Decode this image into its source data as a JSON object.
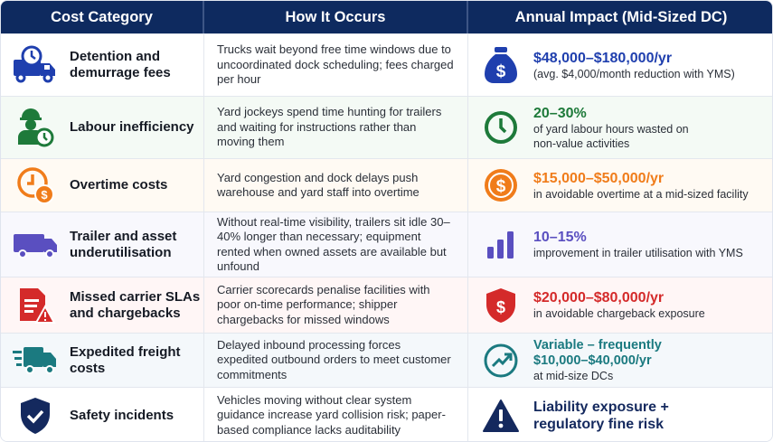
{
  "header": {
    "col1": "Cost Category",
    "col2": "How It Occurs",
    "col3": "Annual Impact (Mid-Sized DC)"
  },
  "rows": [
    {
      "category": "Detention and demurrage fees",
      "how": "Trucks wait beyond free time windows due to uncoordinated dock scheduling; fees charged per hour",
      "impact_value": "$48,000–$180,000/yr",
      "impact_note": "(avg. $4,000/month reduction with YMS)",
      "icon": "truck-clock-icon",
      "impact_icon": "money-bag-icon",
      "color": "#1f3fae",
      "bg": "#ffffff"
    },
    {
      "category": "Labour inefficiency",
      "how": "Yard jockeys spend time hunting for trailers and waiting for instructions rather than moving them",
      "impact_value": "20–30%",
      "impact_note": "of yard labour hours wasted on non-value activities",
      "icon": "worker-clock-icon",
      "impact_icon": "clock-icon",
      "color": "#1e7a3a",
      "bg": "#f4faf5"
    },
    {
      "category": "Overtime costs",
      "how": "Yard congestion and dock delays push warehouse and yard staff into overtime",
      "impact_value": "$15,000–$50,000/yr",
      "impact_note": "in avoidable overtime at a mid-sized facility",
      "icon": "clock-dollar-icon",
      "impact_icon": "dollar-coin-icon",
      "color": "#f07c1a",
      "bg": "#fffaf3"
    },
    {
      "category": "Trailer and asset underutilisation",
      "how": "Without real-time visibility, trailers sit idle 30–40% longer than necessary; equipment rented when owned assets are available but unfound",
      "impact_value": "10–15%",
      "impact_note": "improvement in trailer utilisation with YMS",
      "icon": "trailer-icon",
      "impact_icon": "bar-chart-icon",
      "color": "#5a4fc0",
      "bg": "#f8f8fd"
    },
    {
      "category": "Missed carrier SLAs and chargebacks",
      "how": "Carrier scorecards penalise facilities with poor on-time performance; shipper chargebacks for missed windows",
      "impact_value": "$20,000–$80,000/yr",
      "impact_note": "in avoidable chargeback exposure",
      "icon": "document-warning-icon",
      "impact_icon": "shield-dollar-icon",
      "color": "#d42a2a",
      "bg": "#fff6f6"
    },
    {
      "category": "Expedited freight costs",
      "how": "Delayed inbound processing forces expedited outbound orders to meet customer commitments",
      "impact_value": "Variable – frequently $10,000–$40,000/yr",
      "impact_note": "at mid-size DCs",
      "icon": "fast-truck-icon",
      "impact_icon": "trend-up-icon",
      "color": "#1b7a80",
      "bg": "#f4f8fb"
    },
    {
      "category": "Safety incidents",
      "how": "Vehicles moving without clear system guidance increase yard collision risk; paper-based compliance lacks auditability",
      "impact_value": "Liability exposure + regulatory fine risk",
      "impact_note": "",
      "icon": "shield-check-icon",
      "impact_icon": "warning-icon",
      "color": "#14295e",
      "bg": "#ffffff"
    }
  ]
}
